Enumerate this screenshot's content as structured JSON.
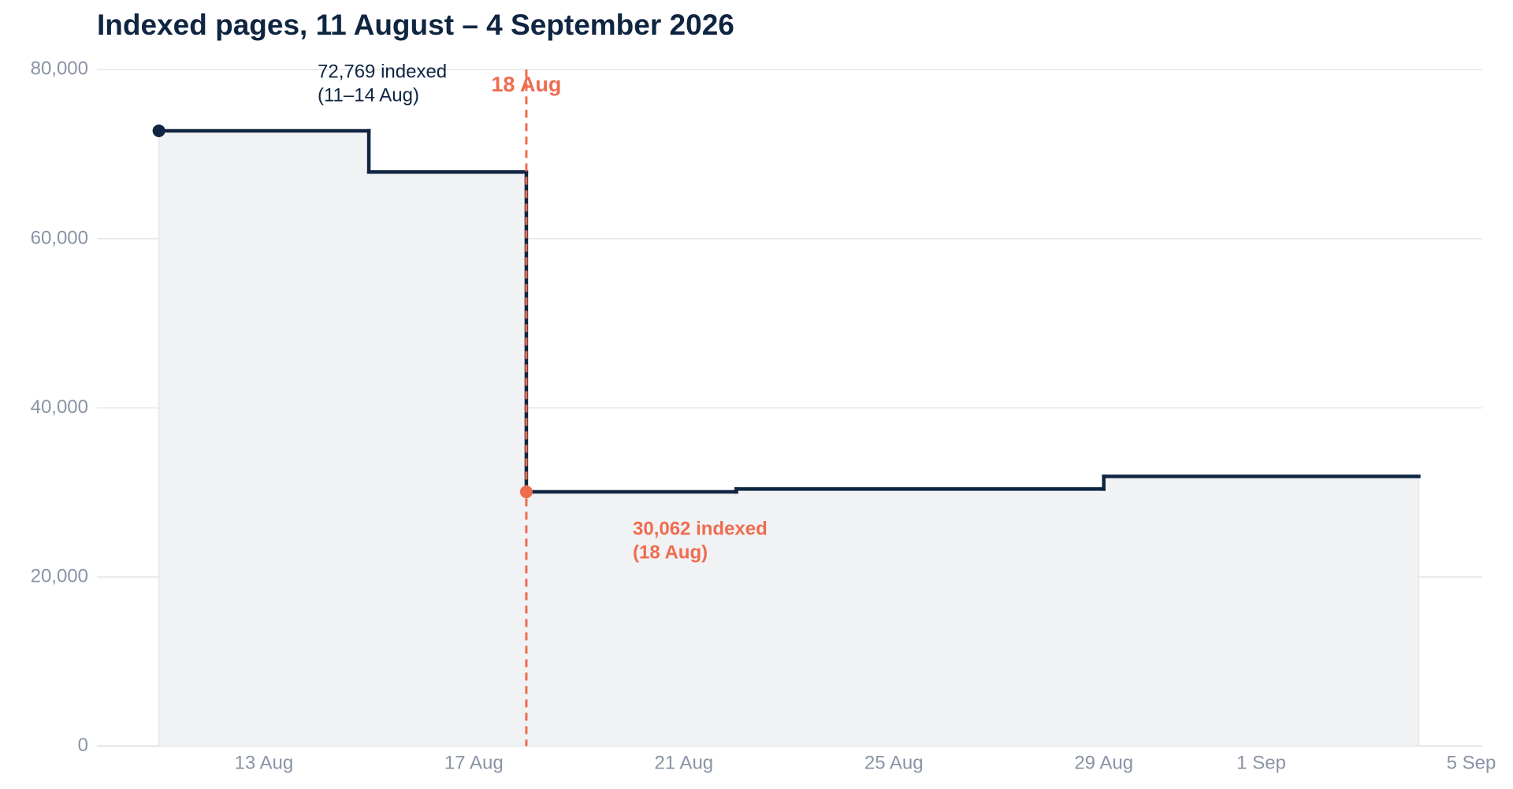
{
  "chart_data": {
    "type": "step",
    "title": "Indexed pages, 11 August – 4 September 2026",
    "x": [
      "11 Aug",
      "15 Aug",
      "18 Aug",
      "22 Aug",
      "29 Aug",
      "4 Sep"
    ],
    "values": [
      72769,
      67900,
      30062,
      30400,
      31900,
      31900
    ],
    "color": "#0f2541",
    "fill": "#f1f2f4",
    "xlim": [
      "10 Aug",
      "5 Sep"
    ],
    "xticks": [
      "13 Aug",
      "17 Aug",
      "21 Aug",
      "25 Aug",
      "29 Aug",
      "1 Sep",
      "5 Sep"
    ],
    "ylim": [
      0,
      80000
    ],
    "yticks": [
      0,
      {
        "value": 20000,
        "label": "20,000"
      },
      {
        "value": 40000,
        "label": "40,000"
      },
      {
        "value": 60000,
        "label": "60,000"
      },
      {
        "value": 80000,
        "label": "80,000"
      }
    ],
    "grid": true,
    "marker_line": {
      "label": "18 Aug",
      "color": "#ef6c4f"
    },
    "annotations": [
      {
        "lines": [
          "72,769 indexed",
          "(11–14 Aug)"
        ],
        "color": "#0f2541"
      },
      {
        "lines": [
          "30,062 indexed",
          "(18 Aug)"
        ],
        "color": "#ef6c4f"
      }
    ]
  }
}
